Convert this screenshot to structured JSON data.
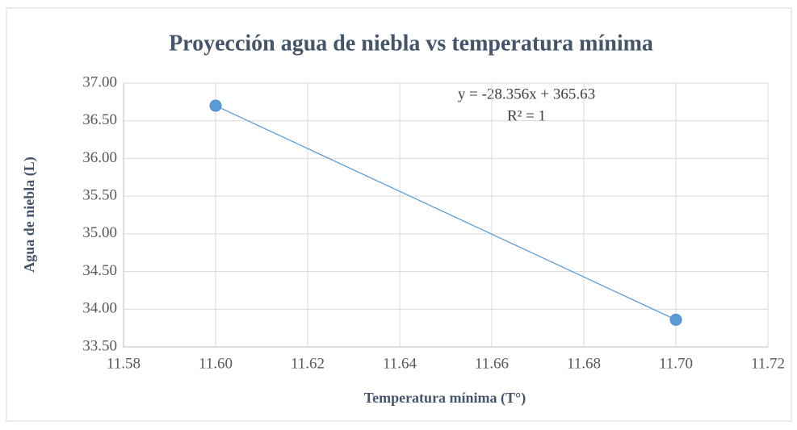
{
  "chart_data": {
    "type": "scatter",
    "title": "Proyección agua de niebla vs temperatura mínima",
    "x_label": "Temperatura mínima (T°)",
    "y_label": "Agua de niebla (L)",
    "annotations": [
      "y = -28.356x + 365.63",
      "R² = 1"
    ],
    "series": [
      {
        "color": "#5b9bd5",
        "x": [
          11.6,
          11.7
        ],
        "values": [
          36.7,
          33.86
        ]
      }
    ],
    "trendline": true,
    "xlim": [
      11.58,
      11.72
    ],
    "xticks": [
      11.58,
      {
        "value": 11.6,
        "label": "11.60"
      },
      11.62,
      11.64,
      11.66,
      11.68,
      {
        "value": 11.7,
        "label": "11.70"
      },
      11.72
    ],
    "ylim": [
      33.5,
      37
    ],
    "yticks": [
      {
        "value": 33.5,
        "label": "33.50"
      },
      {
        "value": 34,
        "label": "34.00"
      },
      {
        "value": 34.5,
        "label": "34.50"
      },
      {
        "value": 35,
        "label": "35.00"
      },
      {
        "value": 35.5,
        "label": "35.50"
      },
      {
        "value": 36,
        "label": "36.00"
      },
      {
        "value": 36.5,
        "label": "36.50"
      },
      {
        "value": 37,
        "label": "37.00"
      }
    ],
    "grid": true
  }
}
